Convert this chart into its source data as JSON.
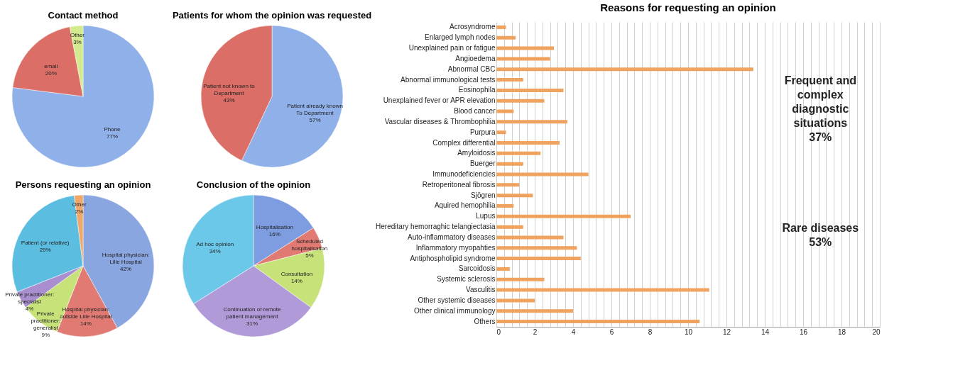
{
  "chart_data": [
    {
      "type": "pie",
      "title": "Contact method",
      "categories": [
        "Phone",
        "email",
        "Other"
      ],
      "values": [
        77,
        20,
        3
      ],
      "colors": [
        "#8fb0e8",
        "#db6e66",
        "#d4ea8e"
      ],
      "value_labels": [
        "77%",
        "20%",
        "3%"
      ],
      "legend": false
    },
    {
      "type": "pie",
      "title": "Patients for whom the opinion was requested",
      "categories": [
        "Patient already known\nTo Department",
        "Patient not known to\nDepartment"
      ],
      "values": [
        57,
        43
      ],
      "colors": [
        "#8fb0e8",
        "#db6e66"
      ],
      "value_labels": [
        "57%",
        "43%"
      ],
      "legend": false
    },
    {
      "type": "pie",
      "title": "Persons requesting an opinion",
      "categories": [
        "Hospital physician:\nLille Hospital",
        "Hospital physician:\noutside Lille Hospital",
        "Private\npractitioner:\ngeneralist",
        "Private practitioner:\nspecialist",
        "Patient (or relative)",
        "Other"
      ],
      "values": [
        42,
        14,
        9,
        4,
        29,
        2
      ],
      "colors": [
        "#8aa6e0",
        "#e07a72",
        "#c8e27a",
        "#a98fd0",
        "#5bbde0",
        "#f0a86a"
      ],
      "value_labels": [
        "42%",
        "14%",
        "9%",
        "4%",
        "29%",
        "2%"
      ],
      "legend": false
    },
    {
      "type": "pie",
      "title": "Conclusion of the opinion",
      "categories": [
        "Hospitalisation",
        "Scheduled\nhospitalisation",
        "Consultation",
        "Continuation of remote\npatient management",
        "Ad hoc opinion"
      ],
      "values": [
        16,
        5,
        14,
        31,
        34
      ],
      "colors": [
        "#7d9de0",
        "#e07a72",
        "#c8e27a",
        "#b09ad8",
        "#6cc8e8"
      ],
      "value_labels": [
        "16%",
        "5%",
        "14%",
        "31%",
        "34%"
      ],
      "legend": false
    },
    {
      "type": "bar",
      "orientation": "horizontal",
      "title": "Reasons for requesting an opinion",
      "categories": [
        "Acrosyndrome",
        "Enlarged lymph nodes",
        "Unexplained pain or fatigue",
        "Angioedema",
        "Abnormal CBC",
        "Abnormal immunological tests",
        "Eosinophila",
        "Unexplained fever or APR elevation",
        "Blood cancer",
        "Vascular diseases & Thrombophilia",
        "Purpura",
        "Complex differential",
        null,
        "Amyloidosis",
        "Buerger",
        "Immunodeficiencies",
        "Retroperitoneal fibrosis",
        "Sjögren",
        "Aquired hemophilia",
        "Lupus",
        "Hereditary hemorraghic telangiectasia",
        "Auto-inflammatory diseases",
        "Inflammatory myopahties",
        "Antiphospholipid syndrome",
        "Sarcoidosis",
        "Systemic sclerosis",
        "Vasculitis",
        "Other systemic diseases",
        "Other clinical immunology",
        null,
        "Others"
      ],
      "values": [
        0.5,
        1.0,
        3.0,
        2.8,
        13.4,
        1.4,
        3.5,
        2.5,
        0.9,
        3.7,
        0.5,
        3.3,
        null,
        2.3,
        1.4,
        4.8,
        1.2,
        1.9,
        0.9,
        7.0,
        1.4,
        3.5,
        4.2,
        4.4,
        0.7,
        2.5,
        11.1,
        2.0,
        4.0,
        null,
        10.6
      ],
      "color": "#f0a35e",
      "xlim": [
        0,
        20
      ],
      "xticks": [
        0,
        {
          "value": 0.4,
          "label": null
        },
        {
          "value": 0.8,
          "label": null
        },
        {
          "value": 1.2,
          "label": null
        },
        {
          "value": 1.6,
          "label": null
        },
        2,
        {
          "value": 2.4,
          "label": null
        },
        {
          "value": 2.8,
          "label": null
        },
        {
          "value": 3.2,
          "label": null
        },
        {
          "value": 3.6,
          "label": null
        },
        4,
        {
          "value": 4.4,
          "label": null
        },
        {
          "value": 4.8,
          "label": null
        },
        {
          "value": 5.2,
          "label": null
        },
        {
          "value": 5.6,
          "label": null
        },
        6,
        {
          "value": 6.4,
          "label": null
        },
        {
          "value": 6.8,
          "label": null
        },
        {
          "value": 7.2,
          "label": null
        },
        {
          "value": 7.6,
          "label": null
        },
        8,
        {
          "value": 8.4,
          "label": null
        },
        {
          "value": 8.8,
          "label": null
        },
        {
          "value": 9.2,
          "label": null
        },
        {
          "value": 9.6,
          "label": null
        },
        10,
        {
          "value": 10.4,
          "label": null
        },
        {
          "value": 10.8,
          "label": null
        },
        {
          "value": 11.2,
          "label": null
        },
        {
          "value": 11.6,
          "label": null
        },
        12,
        {
          "value": 12.4,
          "label": null
        },
        {
          "value": 12.8,
          "label": null
        },
        {
          "value": 13.2,
          "label": null
        },
        {
          "value": 13.6,
          "label": null
        },
        14,
        {
          "value": 14.4,
          "label": null
        },
        {
          "value": 14.8,
          "label": null
        },
        {
          "value": 15.2,
          "label": null
        },
        {
          "value": 15.6,
          "label": null
        },
        16,
        {
          "value": 16.4,
          "label": null
        },
        {
          "value": 16.8,
          "label": null
        },
        {
          "value": 17.2,
          "label": null
        },
        {
          "value": 17.6,
          "label": null
        },
        18,
        {
          "value": 18.4,
          "label": null
        },
        {
          "value": 18.8,
          "label": null
        },
        {
          "value": 19.2,
          "label": null
        },
        {
          "value": 19.6,
          "label": null
        },
        20
      ],
      "grid": "x",
      "legend": false,
      "annotations": [
        "Frequent and complex diagnostic situations 37%",
        "Rare diseases 53%"
      ]
    }
  ]
}
